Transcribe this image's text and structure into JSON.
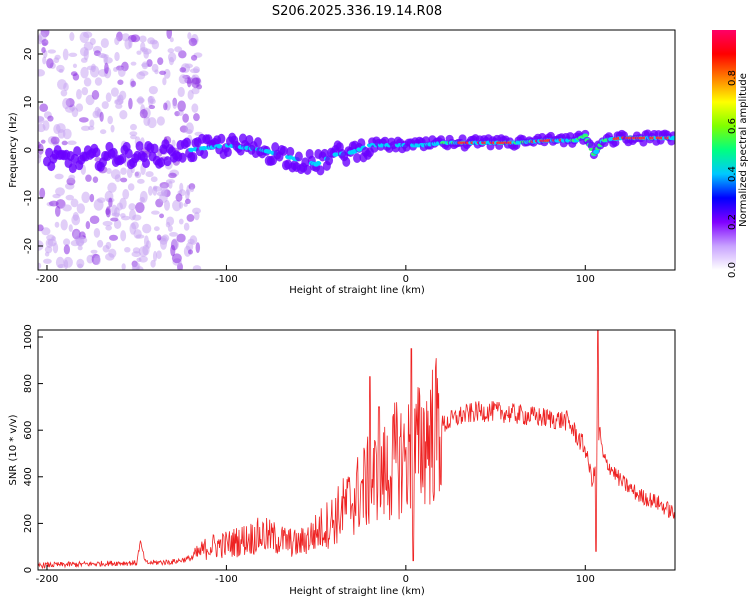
{
  "title": "S206.2025.336.19.14.R08",
  "chart_data": [
    {
      "type": "heatmap",
      "xlabel": "Height of straight line (km)",
      "ylabel": "Frequency (Hz)",
      "xlim": [
        -205,
        150
      ],
      "ylim": [
        -25,
        25
      ],
      "x_ticks": [
        -200,
        -100,
        0,
        100
      ],
      "y_ticks": [
        -20,
        -10,
        0,
        10,
        20
      ],
      "colorbar": {
        "label": "Normalized spectral amplitude",
        "range": [
          0,
          1
        ],
        "ticks": [
          "0.0",
          "0.2",
          "0.4",
          "0.6",
          "0.8"
        ],
        "colors": [
          "#ffffff",
          "#c8a2ff",
          "#8000ff",
          "#0000ff",
          "#00c8ff",
          "#00ff80",
          "#80ff00",
          "#ffff00",
          "#ff8000",
          "#ff0000",
          "#ff0066"
        ]
      },
      "ridge_frequency_hz": {
        "x": [
          -200,
          -180,
          -160,
          -140,
          -120,
          -100,
          -80,
          -70,
          -60,
          -50,
          -40,
          -30,
          -20,
          -10,
          0,
          10,
          20,
          40,
          60,
          80,
          95,
          100,
          105,
          110,
          120,
          150
        ],
        "y": [
          -2,
          -2,
          -1,
          -1,
          0,
          1,
          0,
          -1,
          -2,
          -3,
          -1,
          -0.5,
          1,
          1,
          1,
          1,
          1.5,
          1.5,
          1.5,
          2,
          2,
          3,
          -1,
          2,
          2.5,
          2.5
        ]
      }
    },
    {
      "type": "line",
      "xlabel": "Height of straight line (km)",
      "ylabel": "SNR (10 * v/v)",
      "xlim": [
        -205,
        150
      ],
      "ylim": [
        0,
        1030
      ],
      "x_ticks": [
        -200,
        -100,
        0,
        100
      ],
      "y_ticks": [
        0,
        200,
        400,
        600,
        800,
        1000
      ],
      "color": "#ee2222",
      "envelope": {
        "x": [
          -205,
          -180,
          -160,
          -150,
          -148,
          -145,
          -130,
          -120,
          -110,
          -100,
          -90,
          -80,
          -70,
          -60,
          -50,
          -40,
          -30,
          -20,
          -10,
          -5,
          0,
          5,
          10,
          20,
          30,
          40,
          50,
          60,
          70,
          80,
          90,
          100,
          104,
          106,
          108,
          110,
          120,
          130,
          140,
          150
        ],
        "y": [
          20,
          25,
          30,
          30,
          120,
          30,
          35,
          50,
          100,
          110,
          130,
          150,
          130,
          110,
          160,
          220,
          300,
          380,
          420,
          480,
          480,
          500,
          560,
          620,
          660,
          680,
          680,
          670,
          660,
          650,
          640,
          520,
          380,
          450,
          600,
          480,
          380,
          320,
          290,
          240
        ]
      },
      "spikes": [
        {
          "x": -20,
          "y": 830
        },
        {
          "x": -15,
          "y": 700
        },
        {
          "x": 3,
          "y": 950
        },
        {
          "x": 4,
          "y": 40
        },
        {
          "x": 107,
          "y": 1030
        },
        {
          "x": 106,
          "y": 80
        }
      ]
    }
  ]
}
